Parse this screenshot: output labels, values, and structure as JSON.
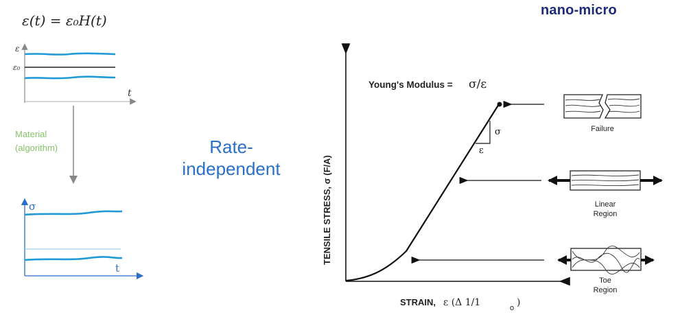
{
  "brand": "nano-micro",
  "formula": "ε(t) = ε₀H(t)",
  "input_plot": {
    "y_label": "ε",
    "level_label": "ε₀",
    "x_label": "t"
  },
  "arrow_label": {
    "line1": "Material",
    "line2": "(algorithm)"
  },
  "output_plot": {
    "y_label": "σ",
    "x_label": "t"
  },
  "center_label": {
    "line1": "Rate-",
    "line2": "independent"
  },
  "stress_strain": {
    "y_label": "TENSILE STRESS, σ (F/A)",
    "x_label": "STRAIN,",
    "x_label_expr": "ε (Δ 1/1",
    "x_label_sub": "o",
    "x_label_close": ")",
    "modulus_text": "Young's Modulus =",
    "modulus_expr": "σ/ε",
    "slope_sigma": "σ",
    "slope_eps": "ε",
    "regions": [
      {
        "name": "failure",
        "label": "Failure"
      },
      {
        "name": "linear",
        "label1": "Linear",
        "label2": "Region"
      },
      {
        "name": "toe",
        "label1": "Toe",
        "label2": "Region"
      }
    ]
  },
  "colors": {
    "wave": "#1f9ad6",
    "axis_blue": "#2a6fc9",
    "material": "#86c46a",
    "brand": "#1f2a7a"
  }
}
